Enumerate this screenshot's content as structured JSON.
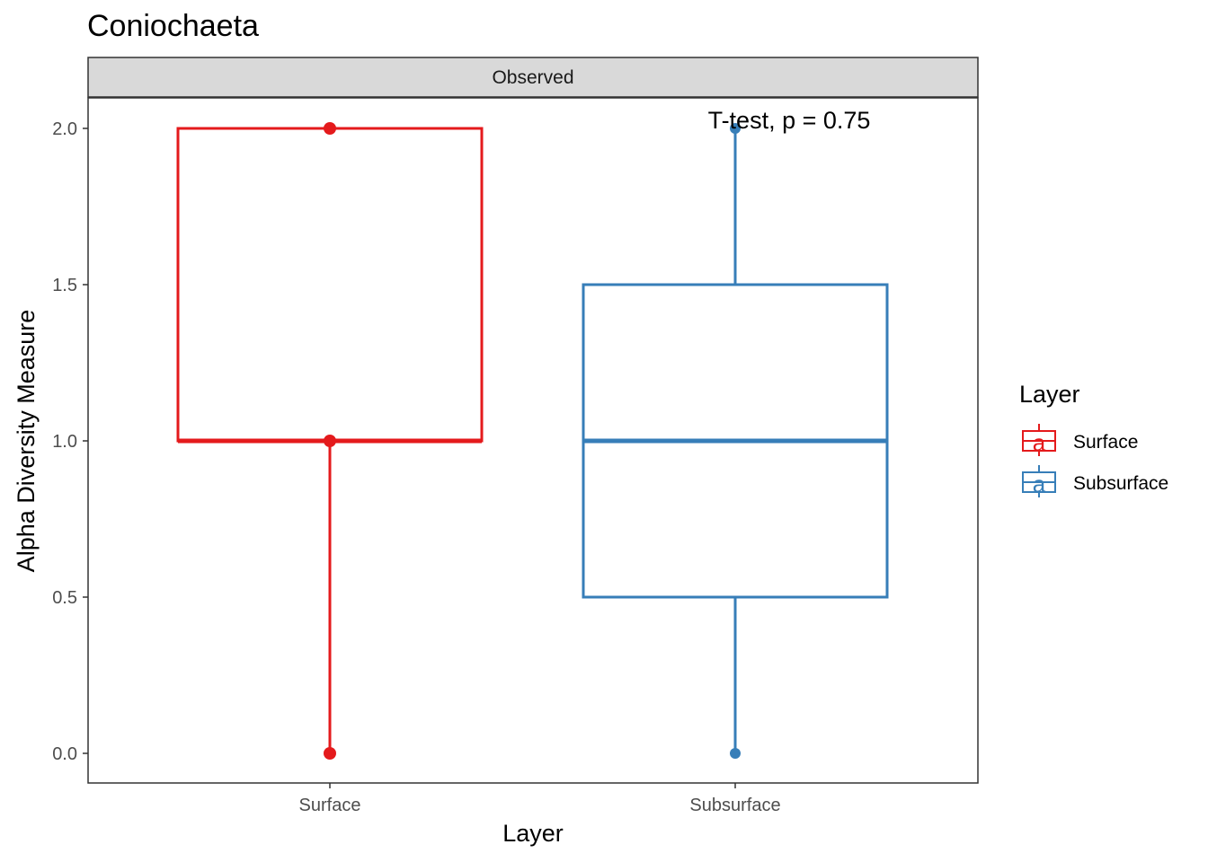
{
  "chart_data": {
    "type": "boxplot",
    "title": "Coniochaeta",
    "facet": "Observed",
    "xlabel": "Layer",
    "ylabel": "Alpha Diversity Measure",
    "categories": [
      "Surface",
      "Subsurface"
    ],
    "ylim": [
      -0.1,
      2.1
    ],
    "yticks": [
      0.0,
      0.5,
      1.0,
      1.5,
      2.0
    ],
    "ytick_labels": [
      "0.0",
      "0.5",
      "1.0",
      "1.5",
      "2.0"
    ],
    "grid": false,
    "boxes": [
      {
        "name": "Surface",
        "color": "#E41A1C",
        "min": 0.0,
        "q1": 1.0,
        "median": 1.0,
        "q3": 2.0,
        "max": 2.0,
        "points": [
          0.0,
          1.0,
          2.0
        ]
      },
      {
        "name": "Subsurface",
        "color": "#377EB8",
        "min": 0.0,
        "q1": 0.5,
        "median": 1.0,
        "q3": 1.5,
        "max": 2.0,
        "points": [
          0.0,
          2.0
        ]
      }
    ],
    "annotation": "T-test, p = 0.75",
    "legend": {
      "title": "Layer",
      "placement": "right",
      "entries": [
        {
          "label": "Surface",
          "color": "#E41A1C",
          "key": "a"
        },
        {
          "label": "Subsurface",
          "color": "#377EB8",
          "key": "a"
        }
      ]
    }
  }
}
